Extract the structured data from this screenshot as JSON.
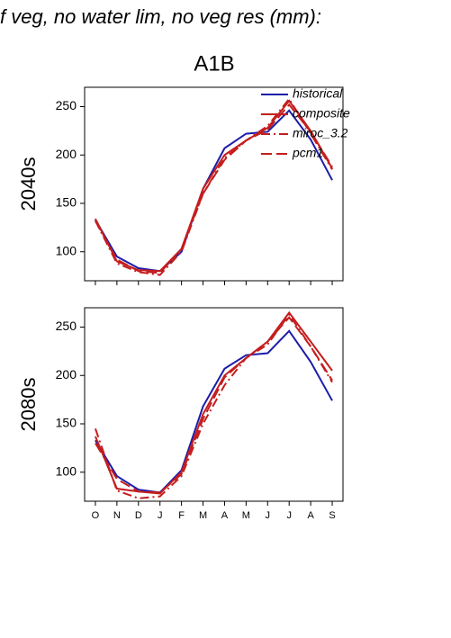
{
  "title": "f veg, no water lim, no veg res (mm):",
  "subtitle": "A1B",
  "chart_data": [
    {
      "type": "line",
      "ylabel": "2040s",
      "categories": [
        null,
        null,
        null,
        null,
        null,
        null,
        null,
        null,
        null,
        null,
        null,
        null
      ],
      "ylim": [
        70,
        270
      ],
      "yticks": [
        100,
        150,
        200,
        250
      ],
      "legend": "upper right",
      "series": [
        {
          "name": "historical",
          "color": "#1c1caa",
          "style": "solid",
          "values": [
            133,
            95,
            83,
            80,
            100,
            165,
            207,
            222,
            224,
            246,
            216,
            174
          ]
        },
        {
          "name": "composite",
          "color": "#c41e1e",
          "style": "solid",
          "values": [
            134,
            90,
            81,
            80,
            103,
            165,
            200,
            215,
            228,
            256,
            225,
            186
          ]
        },
        {
          "name": "miroc_3.2",
          "color": "#c41e1e",
          "style": "dashdot",
          "values": [
            132,
            88,
            79,
            76,
            100,
            160,
            197,
            215,
            230,
            258,
            222,
            185
          ]
        },
        {
          "name": "pcm1",
          "color": "#c41e1e",
          "style": "dashed",
          "values": [
            132,
            92,
            80,
            78,
            103,
            160,
            195,
            215,
            226,
            252,
            224,
            188
          ]
        }
      ]
    },
    {
      "type": "line",
      "ylabel": "2080s",
      "categories": [
        "O",
        "N",
        "D",
        "J",
        "F",
        "M",
        "A",
        "M",
        "J",
        "J",
        "A",
        "S"
      ],
      "ylim": [
        70,
        270
      ],
      "yticks": [
        100,
        150,
        200,
        250
      ],
      "series": [
        {
          "color": "#1c1caa",
          "style": "solid",
          "values": [
            133,
            96,
            82,
            79,
            102,
            168,
            207,
            221,
            223,
            246,
            214,
            174
          ]
        },
        {
          "color": "#c41e1e",
          "style": "solid",
          "values": [
            137,
            83,
            80,
            78,
            100,
            160,
            200,
            218,
            235,
            265,
            235,
            205
          ]
        },
        {
          "color": "#c41e1e",
          "style": "dashdot",
          "values": [
            145,
            81,
            73,
            75,
            96,
            150,
            190,
            218,
            232,
            263,
            230,
            193
          ]
        },
        {
          "color": "#c41e1e",
          "style": "dashed",
          "values": [
            130,
            93,
            80,
            79,
            98,
            155,
            198,
            218,
            235,
            260,
            230,
            195
          ]
        }
      ]
    }
  ]
}
